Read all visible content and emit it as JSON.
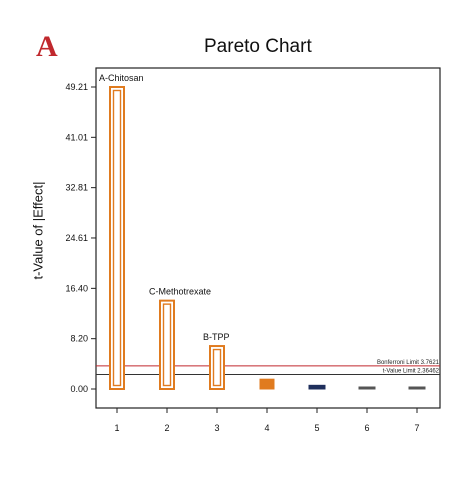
{
  "panel_letter": "A",
  "chart_data": {
    "type": "bar",
    "title": "Pareto Chart",
    "xlabel": "",
    "ylabel": "t-Value of |Effect|",
    "categories": [
      "1",
      "2",
      "3",
      "4",
      "5",
      "6",
      "7"
    ],
    "values": [
      49.21,
      14.4,
      7.0,
      1.6,
      0.6,
      0.2,
      0.2
    ],
    "bar_labels": [
      "A-Chitosan",
      "C-Methotrexate",
      "B-TPP",
      "",
      "",
      "",
      ""
    ],
    "bar_colors": [
      "#e07b1f",
      "#e07b1f",
      "#e07b1f",
      "#e07b1f",
      "#1f2f5c",
      "#555555",
      "#555555"
    ],
    "bar_styles": [
      "hollow",
      "hollow",
      "hollow",
      "filled",
      "filled",
      "filled",
      "filled"
    ],
    "yticks": [
      "0.00",
      "8.20",
      "16.40",
      "24.61",
      "32.81",
      "41.01",
      "49.21"
    ],
    "ylim": [
      0,
      52.5
    ],
    "reference_lines": [
      {
        "label": "Bonferroni Limit 3.7621",
        "value": 3.7621,
        "color": "#c0282d"
      },
      {
        "label": "t-Value Limit 2.36462",
        "value": 2.36462,
        "color": "#333333"
      }
    ],
    "grid": false
  }
}
